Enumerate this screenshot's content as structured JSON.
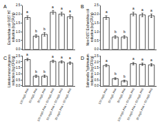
{
  "chart_data": [
    {
      "type": "bar",
      "panel_label": "A",
      "y_label": [
        "Escherichia coli O157:H7",
        "reduction (log CFU/g)"
      ],
      "categories": [
        "100 mg/L PAA",
        "50 mg/L PAA",
        "30 mg/L PAA",
        "100 mg/L PAA + 50 mg/L PAS",
        "50 mg/L PAA + 50 mg/L PAS",
        "30 mg/L PAA + 50 mg/L PAS"
      ],
      "values": [
        1.8,
        0.75,
        0.85,
        2.1,
        2.0,
        1.85
      ],
      "errors": [
        0.1,
        0.08,
        0.1,
        0.1,
        0.1,
        0.1
      ],
      "annotations": [
        "a",
        "b",
        "b",
        "a",
        "a",
        "a"
      ],
      "color": "#ffffff",
      "grid": false,
      "tick_labels": "y",
      "ylim": [
        0,
        2.5
      ],
      "yticks": [
        {
          "value": 0,
          "label": "0.0"
        },
        {
          "value": 0.5,
          "label": "0.5"
        },
        {
          "value": 1,
          "label": "1.0"
        },
        {
          "value": 1.5,
          "label": "1.5"
        },
        {
          "value": 2,
          "label": "2.0"
        },
        {
          "value": 2.5,
          "label": "2.5"
        }
      ]
    },
    {
      "type": "bar",
      "panel_label": "B",
      "y_label": [
        "Non-O157 Escherichia coli",
        "reduction (log CFU/g)"
      ],
      "categories": [
        "100 mg/L PAA",
        "50 mg/L PAA",
        "30 mg/L PAA",
        "100 mg/L PAA + 50 mg/L PAS",
        "50 mg/L PAA + 50 mg/L PAS",
        "30 mg/L PAA + 50 mg/L PAS"
      ],
      "values": [
        1.8,
        0.7,
        0.7,
        2.0,
        1.95,
        1.9
      ],
      "errors": [
        0.1,
        0.08,
        0.08,
        0.1,
        0.1,
        0.1
      ],
      "annotations": [
        "a",
        "b",
        "b",
        "a",
        "a",
        "a"
      ],
      "color": "#ffffff",
      "grid": false,
      "tick_labels": "y",
      "ylim": [
        0,
        2.5
      ],
      "yticks": [
        {
          "value": 0,
          "label": "0.0"
        },
        {
          "value": 0.5,
          "label": "0.5"
        },
        {
          "value": 1,
          "label": "1.0"
        },
        {
          "value": 1.5,
          "label": "1.5"
        },
        {
          "value": 2,
          "label": "2.0"
        },
        {
          "value": 2.5,
          "label": "2.5"
        }
      ]
    },
    {
      "type": "bar",
      "panel_label": "C",
      "y_label": [
        "Listeria monocytogenes",
        "reduction (log CFU/g)"
      ],
      "categories": [
        "100 mg/L PAA",
        "50 mg/L PAA",
        "30 mg/L PAA",
        "100 mg/L PAA + 50 mg/L PAS",
        "50 mg/L PAA + 50 mg/L PAS",
        "30 mg/L PAA + 50 mg/L PAS"
      ],
      "values": [
        2.2,
        0.8,
        0.8,
        2.05,
        2.0,
        1.9
      ],
      "errors": [
        0.1,
        0.1,
        0.1,
        0.1,
        0.1,
        0.1
      ],
      "annotations": [
        "a",
        "b",
        "b",
        "a",
        "a",
        "a"
      ],
      "color": "#ffffff",
      "grid": false,
      "ylim": [
        0,
        2.5
      ],
      "yticks": [
        {
          "value": 0,
          "label": "0.0"
        },
        {
          "value": 0.5,
          "label": "0.5"
        },
        {
          "value": 1,
          "label": "1.0"
        },
        {
          "value": 1.5,
          "label": "1.5"
        },
        {
          "value": 2,
          "label": "2.0"
        },
        {
          "value": 2.5,
          "label": "2.5"
        }
      ]
    },
    {
      "type": "bar",
      "panel_label": "D",
      "y_label": [
        "Salmonella Typhimurium",
        "reduction (log CFU/g)"
      ],
      "categories": [
        "100 mg/L PAA",
        "50 mg/L PAA",
        "30 mg/L PAA",
        "100 mg/L PAA + 50 mg/L PAS",
        "50 mg/L PAA + 50 mg/L PAS",
        "30 mg/L PAA + 50 mg/L PAS"
      ],
      "values": [
        1.7,
        0.6,
        0.4,
        1.85,
        1.8,
        1.75
      ],
      "errors": [
        0.1,
        0.08,
        0.08,
        0.1,
        0.1,
        0.1
      ],
      "annotations": [
        "a",
        "b",
        "b",
        "a",
        "a",
        "a"
      ],
      "color": "#ffffff",
      "grid": false,
      "ylim": [
        0,
        2.5
      ],
      "yticks": [
        {
          "value": 0,
          "label": "0.0"
        },
        {
          "value": 0.5,
          "label": "0.5"
        },
        {
          "value": 1,
          "label": "1.0"
        },
        {
          "value": 1.5,
          "label": "1.5"
        },
        {
          "value": 2,
          "label": "2.0"
        },
        {
          "value": 2.5,
          "label": "2.5"
        }
      ]
    }
  ]
}
